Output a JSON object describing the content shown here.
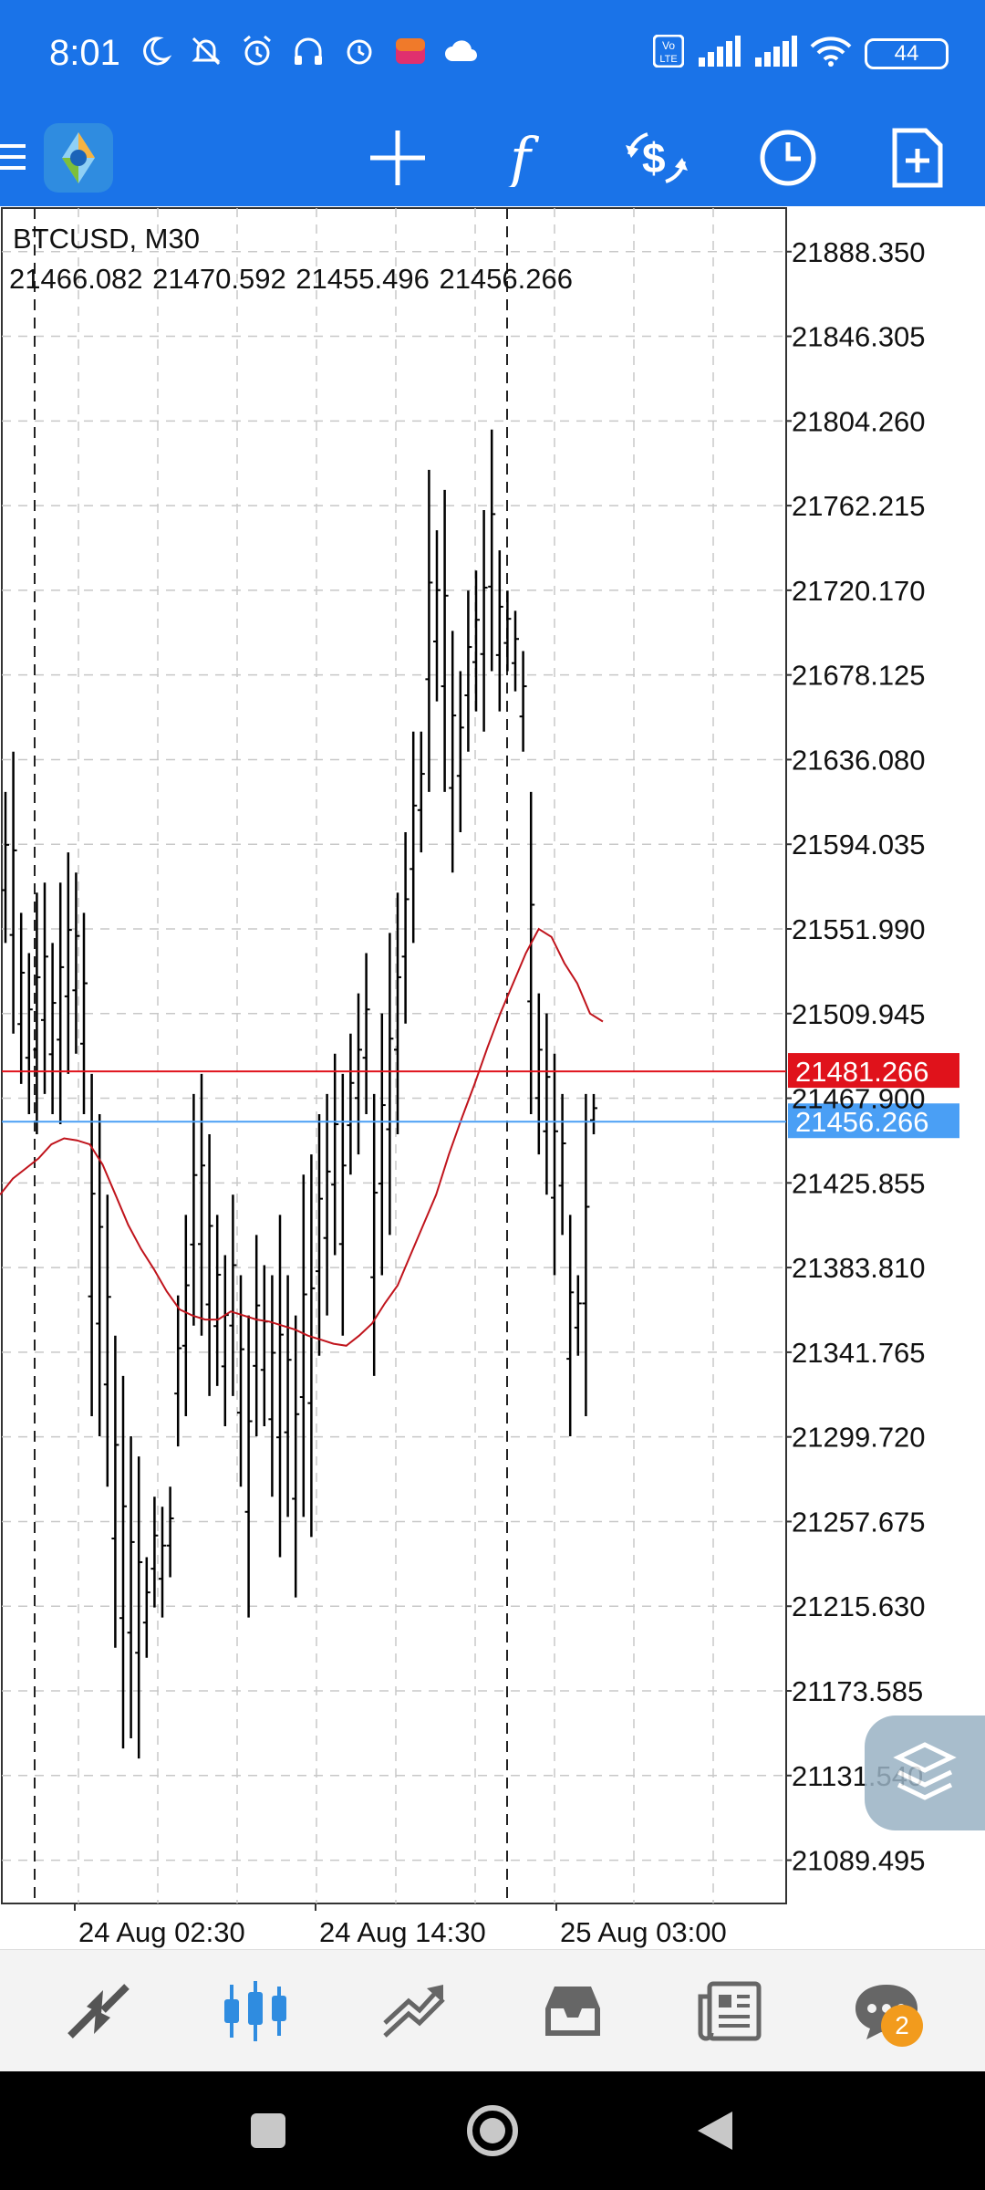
{
  "status_bar": {
    "time": "8:01",
    "icons": [
      "moon-icon",
      "muted-bell-icon",
      "alarm-icon",
      "headset-icon",
      "clock-icon",
      "lazada-icon",
      "cloud-icon"
    ],
    "volte": "Vo LTE",
    "battery": "44"
  },
  "toolbar": {
    "buttons": [
      "crosshair-icon",
      "indicators-icon",
      "trade-icon",
      "period-icon",
      "new-order-icon"
    ]
  },
  "chart": {
    "symbol": "BTCUSD, M30",
    "ohlc": "21466.082 21470.592 21455.496 21456.266",
    "price_labels": [
      "21888.350",
      "21846.305",
      "21804.260",
      "21762.215",
      "21720.170",
      "21678.125",
      "21636.080",
      "21594.035",
      "21551.990",
      "21509.945",
      "21467.900",
      "21425.855",
      "21383.810",
      "21341.765",
      "21299.720",
      "21257.675",
      "21215.630",
      "21173.585",
      "21131.540",
      "21089.495"
    ],
    "ask_price": "21481.266",
    "bid_price": "21456.266",
    "date_labels": [
      "24 Aug 02:30",
      "24 Aug 14:30",
      "25 Aug 03:00"
    ],
    "colors": {
      "ask": "#e0121b",
      "bid": "#4a9ff5",
      "ma": "#c0141c",
      "bars": "#000000",
      "grid": "#c8c8c8"
    }
  },
  "chart_data": {
    "type": "ohlc",
    "ylim": [
      21068,
      21910
    ],
    "bars": [
      {
        "l": 21545,
        "h": 21620
      },
      {
        "l": 21500,
        "h": 21640
      },
      {
        "l": 21475,
        "h": 21560
      },
      {
        "l": 21460,
        "h": 21540
      },
      {
        "l": 21450,
        "h": 21570
      },
      {
        "l": 21470,
        "h": 21575
      },
      {
        "l": 21460,
        "h": 21545
      },
      {
        "l": 21455,
        "h": 21575
      },
      {
        "l": 21480,
        "h": 21590
      },
      {
        "l": 21490,
        "h": 21580
      },
      {
        "l": 21460,
        "h": 21560
      },
      {
        "l": 21310,
        "h": 21480
      },
      {
        "l": 21300,
        "h": 21460
      },
      {
        "l": 21275,
        "h": 21420
      },
      {
        "l": 21195,
        "h": 21350
      },
      {
        "l": 21145,
        "h": 21330
      },
      {
        "l": 21150,
        "h": 21300
      },
      {
        "l": 21140,
        "h": 21290
      },
      {
        "l": 21190,
        "h": 21240
      },
      {
        "l": 21215,
        "h": 21270
      },
      {
        "l": 21210,
        "h": 21265
      },
      {
        "l": 21230,
        "h": 21275
      },
      {
        "l": 21295,
        "h": 21370
      },
      {
        "l": 21310,
        "h": 21410
      },
      {
        "l": 21355,
        "h": 21470
      },
      {
        "l": 21350,
        "h": 21480
      },
      {
        "l": 21320,
        "h": 21450
      },
      {
        "l": 21325,
        "h": 21410
      },
      {
        "l": 21305,
        "h": 21390
      },
      {
        "l": 21320,
        "h": 21420
      },
      {
        "l": 21275,
        "h": 21380
      },
      {
        "l": 21210,
        "h": 21360
      },
      {
        "l": 21300,
        "h": 21400
      },
      {
        "l": 21305,
        "h": 21385
      },
      {
        "l": 21270,
        "h": 21380
      },
      {
        "l": 21240,
        "h": 21410
      },
      {
        "l": 21260,
        "h": 21380
      },
      {
        "l": 21220,
        "h": 21360
      },
      {
        "l": 21260,
        "h": 21430
      },
      {
        "l": 21250,
        "h": 21440
      },
      {
        "l": 21340,
        "h": 21460
      },
      {
        "l": 21360,
        "h": 21470
      },
      {
        "l": 21390,
        "h": 21490
      },
      {
        "l": 21350,
        "h": 21480
      },
      {
        "l": 21430,
        "h": 21500
      },
      {
        "l": 21440,
        "h": 21520
      },
      {
        "l": 21460,
        "h": 21540
      },
      {
        "l": 21330,
        "h": 21470
      },
      {
        "l": 21380,
        "h": 21510
      },
      {
        "l": 21400,
        "h": 21550
      },
      {
        "l": 21450,
        "h": 21570
      },
      {
        "l": 21505,
        "h": 21600
      },
      {
        "l": 21545,
        "h": 21650
      },
      {
        "l": 21590,
        "h": 21650
      },
      {
        "l": 21620,
        "h": 21780
      },
      {
        "l": 21665,
        "h": 21750
      },
      {
        "l": 21620,
        "h": 21770
      },
      {
        "l": 21580,
        "h": 21700
      },
      {
        "l": 21600,
        "h": 21680
      },
      {
        "l": 21640,
        "h": 21720
      },
      {
        "l": 21660,
        "h": 21730
      },
      {
        "l": 21650,
        "h": 21760
      },
      {
        "l": 21680,
        "h": 21800
      },
      {
        "l": 21660,
        "h": 21740
      },
      {
        "l": 21680,
        "h": 21720
      },
      {
        "l": 21670,
        "h": 21710
      },
      {
        "l": 21640,
        "h": 21690
      },
      {
        "l": 21460,
        "h": 21620
      },
      {
        "l": 21440,
        "h": 21520
      },
      {
        "l": 21420,
        "h": 21510
      },
      {
        "l": 21380,
        "h": 21490
      },
      {
        "l": 21400,
        "h": 21470
      },
      {
        "l": 21300,
        "h": 21410
      },
      {
        "l": 21340,
        "h": 21380
      },
      {
        "l": 21310,
        "h": 21470
      },
      {
        "l": 21450,
        "h": 21470
      }
    ],
    "ma": [
      21420,
      21428,
      21433,
      21438,
      21445,
      21448,
      21447,
      21445,
      21435,
      21420,
      21405,
      21393,
      21383,
      21372,
      21363,
      21360,
      21358,
      21358,
      21362,
      21360,
      21358,
      21357,
      21355,
      21353,
      21350,
      21348,
      21346,
      21345,
      21350,
      21356,
      21366,
      21375,
      21390,
      21405,
      21420,
      21440,
      21458,
      21475,
      21493,
      21510,
      21525,
      21540,
      21552,
      21548,
      21535,
      21525,
      21510,
      21506
    ]
  },
  "bottom_nav": {
    "items": [
      "quotes-icon",
      "chart-icon",
      "trade-icon",
      "history-icon",
      "news-icon",
      "messages-icon"
    ],
    "messages_badge": "2"
  }
}
